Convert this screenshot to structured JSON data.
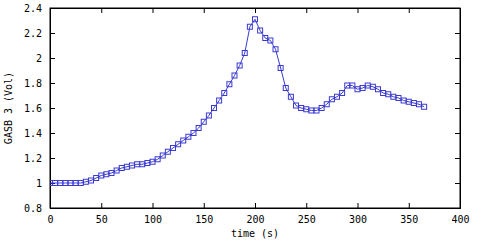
{
  "chart_data": {
    "type": "line",
    "x_label": "time (s)",
    "y_label": "GASB 3 (Vol)",
    "x": [
      0,
      5,
      10,
      15,
      20,
      25,
      30,
      35,
      40,
      45,
      50,
      55,
      60,
      65,
      70,
      75,
      80,
      85,
      90,
      95,
      100,
      105,
      110,
      115,
      120,
      125,
      130,
      135,
      140,
      145,
      150,
      155,
      160,
      165,
      170,
      175,
      180,
      185,
      190,
      195,
      200,
      205,
      210,
      215,
      220,
      225,
      230,
      235,
      240,
      245,
      250,
      255,
      260,
      265,
      270,
      275,
      280,
      285,
      290,
      295,
      300,
      305,
      310,
      315,
      320,
      325,
      330,
      335,
      340,
      345,
      350,
      355,
      360,
      365
    ],
    "values": [
      1.0,
      1.0,
      1.0,
      1.0,
      1.0,
      1.0,
      1.0,
      1.01,
      1.02,
      1.04,
      1.06,
      1.07,
      1.08,
      1.1,
      1.12,
      1.13,
      1.14,
      1.15,
      1.15,
      1.16,
      1.17,
      1.19,
      1.22,
      1.25,
      1.28,
      1.31,
      1.34,
      1.37,
      1.4,
      1.44,
      1.49,
      1.54,
      1.6,
      1.66,
      1.72,
      1.79,
      1.86,
      1.94,
      2.04,
      2.25,
      2.31,
      2.22,
      2.16,
      2.14,
      2.07,
      1.92,
      1.76,
      1.69,
      1.62,
      1.6,
      1.59,
      1.58,
      1.58,
      1.6,
      1.63,
      1.67,
      1.69,
      1.72,
      1.78,
      1.78,
      1.75,
      1.76,
      1.78,
      1.77,
      1.75,
      1.72,
      1.71,
      1.69,
      1.68,
      1.66,
      1.65,
      1.64,
      1.63,
      1.61
    ],
    "color": "#3a3ad0",
    "marker": "square",
    "line_style": "solid",
    "xlim": [
      0,
      400
    ],
    "xticks": [
      0,
      50,
      100,
      150,
      200,
      250,
      300,
      350,
      400
    ],
    "ylim": [
      0.8,
      2.4
    ],
    "yticks": [
      0.8,
      1,
      1.2,
      1.4,
      1.6,
      1.8,
      2,
      2.2,
      2.4
    ],
    "grid": false
  }
}
